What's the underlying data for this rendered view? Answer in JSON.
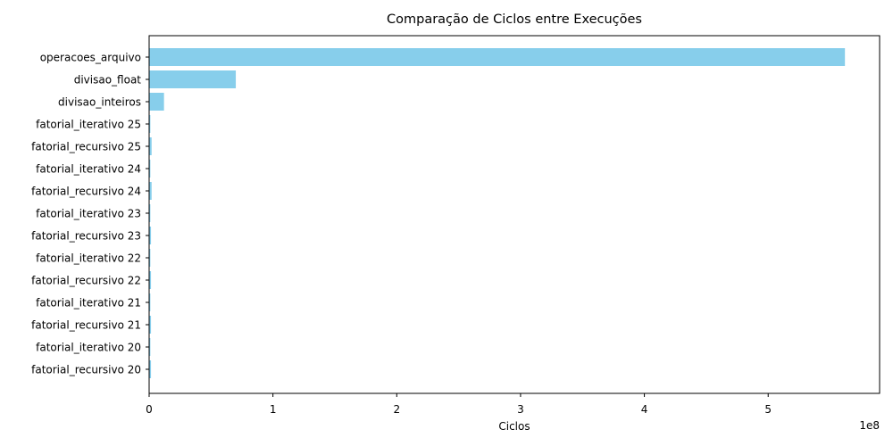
{
  "chart_data": {
    "type": "bar",
    "orientation": "horizontal",
    "title": "Comparação de Ciclos entre Execuções",
    "xlabel": "Ciclos",
    "ylabel": "",
    "x_scale_label": "1e8",
    "x_tick_labels": [
      "0",
      "1",
      "2",
      "3",
      "4",
      "5"
    ],
    "x_ticks": [
      0,
      100000000,
      200000000,
      300000000,
      400000000,
      500000000
    ],
    "xlim": [
      0,
      590000000
    ],
    "grid": false,
    "bar_color": "#87ceeb",
    "categories": [
      "operacoes_arquivo",
      "divisao_float",
      "divisao_inteiros",
      "fatorial_iterativo 25",
      "fatorial_recursivo 25",
      "fatorial_iterativo 24",
      "fatorial_recursivo 24",
      "fatorial_iterativo 23",
      "fatorial_recursivo 23",
      "fatorial_iterativo 22",
      "fatorial_recursivo 22",
      "fatorial_iterativo 21",
      "fatorial_recursivo 21",
      "fatorial_iterativo 20",
      "fatorial_recursivo 20"
    ],
    "values": [
      562000000,
      70000000,
      12000000,
      1000000,
      2000000,
      1000000,
      2000000,
      1000000,
      1500000,
      1000000,
      1500000,
      1000000,
      1500000,
      1000000,
      1500000
    ]
  }
}
